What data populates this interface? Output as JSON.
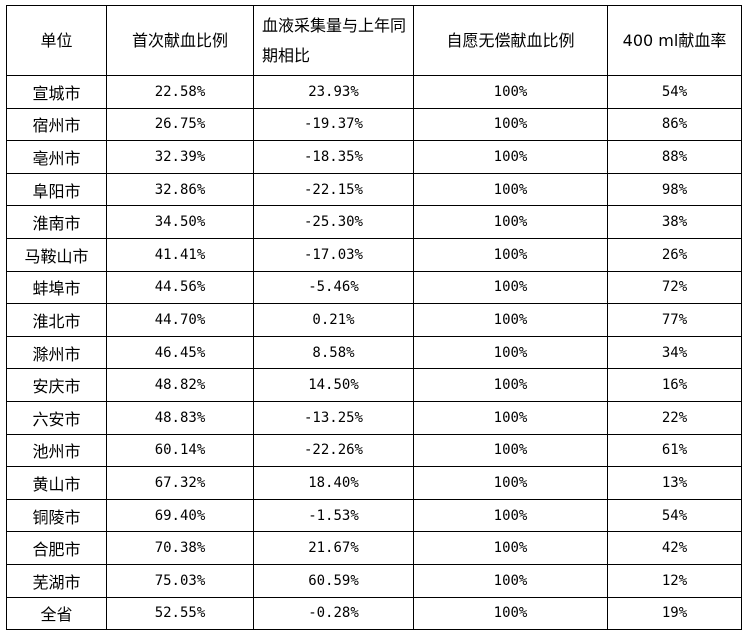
{
  "headers": [
    "单位",
    "首次献血比例",
    "血液采集量与上年同期相比",
    "自愿无偿献血比例",
    "400 ml献血率"
  ],
  "rows": [
    [
      "宣城市",
      "22.58%",
      "23.93%",
      "100%",
      "54%"
    ],
    [
      "宿州市",
      "26.75%",
      "-19.37%",
      "100%",
      "86%"
    ],
    [
      "亳州市",
      "32.39%",
      "-18.35%",
      "100%",
      "88%"
    ],
    [
      "阜阳市",
      "32.86%",
      "-22.15%",
      "100%",
      "98%"
    ],
    [
      "淮南市",
      "34.50%",
      "-25.30%",
      "100%",
      "38%"
    ],
    [
      "马鞍山市",
      "41.41%",
      "-17.03%",
      "100%",
      "26%"
    ],
    [
      "蚌埠市",
      "44.56%",
      "-5.46%",
      "100%",
      "72%"
    ],
    [
      "淮北市",
      "44.70%",
      "0.21%",
      "100%",
      "77%"
    ],
    [
      "滁州市",
      "46.45%",
      "8.58%",
      "100%",
      "34%"
    ],
    [
      "安庆市",
      "48.82%",
      "14.50%",
      "100%",
      "16%"
    ],
    [
      "六安市",
      "48.83%",
      "-13.25%",
      "100%",
      "22%"
    ],
    [
      "池州市",
      "60.14%",
      "-22.26%",
      "100%",
      "61%"
    ],
    [
      "黄山市",
      "67.32%",
      "18.40%",
      "100%",
      "13%"
    ],
    [
      "铜陵市",
      "69.40%",
      "-1.53%",
      "100%",
      "54%"
    ],
    [
      "合肥市",
      "70.38%",
      "21.67%",
      "100%",
      "42%"
    ],
    [
      "芜湖市",
      "75.03%",
      "60.59%",
      "100%",
      "12%"
    ],
    [
      "全省",
      "52.55%",
      "-0.28%",
      "100%",
      "19%"
    ]
  ]
}
